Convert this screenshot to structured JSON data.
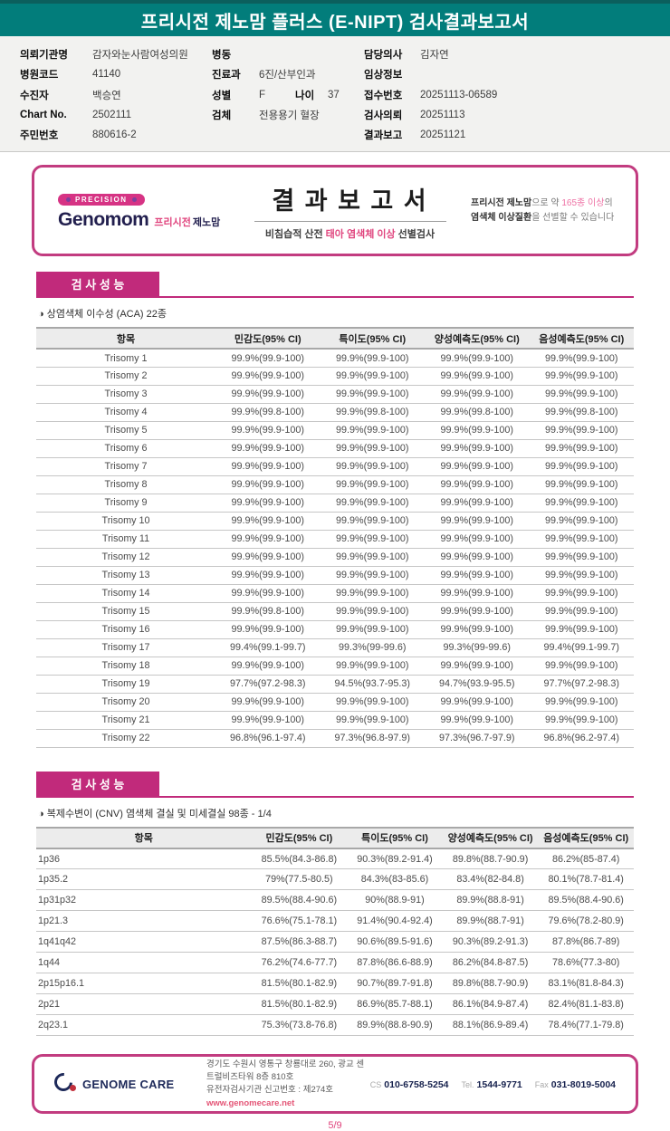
{
  "colors": {
    "teal": "#027d7b",
    "magenta": "#c12a7b",
    "pink_accent": "#e0457e"
  },
  "header": {
    "title": "프리시전 제노맘 플러스 (E-NIPT) 검사결과보고서"
  },
  "patient": {
    "col1": [
      {
        "label": "의뢰기관명",
        "value": "감자와눈사람여성의원"
      },
      {
        "label": "병원코드",
        "value": "41140"
      },
      {
        "label": "수진자",
        "value": "백승연"
      },
      {
        "label": "Chart No.",
        "value": "2502111"
      },
      {
        "label": "주민번호",
        "value": "880616-2"
      }
    ],
    "col2": [
      {
        "label": "병동",
        "value": ""
      },
      {
        "label": "진료과",
        "value": "6진/산부인과"
      },
      {
        "label": "성별",
        "value": "F",
        "label2": "나이",
        "value2": "37"
      },
      {
        "label": "검체",
        "value": "전용용기 혈장"
      }
    ],
    "col3": [
      {
        "label": "담당의사",
        "value": "김자연"
      },
      {
        "label": "임상정보",
        "value": ""
      },
      {
        "label": "접수번호",
        "value": "20251113-06589"
      },
      {
        "label": "검사의뢰",
        "value": "20251113"
      },
      {
        "label": "결과보고",
        "value": "20251121"
      }
    ]
  },
  "banner": {
    "badge": "PRECISION",
    "brand": "Genomom",
    "brand_kr_pink": "프리시전",
    "brand_kr_dark": "제노맘",
    "title": "결 과 보 고 서",
    "sub_pre": "비침습적 산전 ",
    "sub_pink": "태아 염색체 이상",
    "sub_post": " 선별검사",
    "right_b1": "프리시전 제노맘",
    "right_t1": "으로 약 ",
    "right_p1": "165종 이상",
    "right_t2": "의 ",
    "right_b2": "염색체 이상질환",
    "right_t3": "을 선별할 수 있습니다"
  },
  "section_aca": {
    "heading": "검 사 성 능",
    "subtitle": "◑ 상염색체 이수성 (ACA) 22종"
  },
  "section_cnv": {
    "heading": "검 사 성 능",
    "subtitle": "◑ 복제수변이 (CNV) 염색체 결실 및 미세결실 98종 - 1/4"
  },
  "tables": {
    "aca": {
      "columns": [
        "항목",
        "민감도(95% CI)",
        "특이도(95% CI)",
        "양성예측도(95% CI)",
        "음성예측도(95% CI)"
      ],
      "rows": [
        [
          "Trisomy 1",
          "99.9%(99.9-100)",
          "99.9%(99.9-100)",
          "99.9%(99.9-100)",
          "99.9%(99.9-100)"
        ],
        [
          "Trisomy 2",
          "99.9%(99.9-100)",
          "99.9%(99.9-100)",
          "99.9%(99.9-100)",
          "99.9%(99.9-100)"
        ],
        [
          "Trisomy 3",
          "99.9%(99.9-100)",
          "99.9%(99.9-100)",
          "99.9%(99.9-100)",
          "99.9%(99.9-100)"
        ],
        [
          "Trisomy 4",
          "99.9%(99.8-100)",
          "99.9%(99.8-100)",
          "99.9%(99.8-100)",
          "99.9%(99.8-100)"
        ],
        [
          "Trisomy 5",
          "99.9%(99.9-100)",
          "99.9%(99.9-100)",
          "99.9%(99.9-100)",
          "99.9%(99.9-100)"
        ],
        [
          "Trisomy 6",
          "99.9%(99.9-100)",
          "99.9%(99.9-100)",
          "99.9%(99.9-100)",
          "99.9%(99.9-100)"
        ],
        [
          "Trisomy 7",
          "99.9%(99.9-100)",
          "99.9%(99.9-100)",
          "99.9%(99.9-100)",
          "99.9%(99.9-100)"
        ],
        [
          "Trisomy 8",
          "99.9%(99.9-100)",
          "99.9%(99.9-100)",
          "99.9%(99.9-100)",
          "99.9%(99.9-100)"
        ],
        [
          "Trisomy 9",
          "99.9%(99.9-100)",
          "99.9%(99.9-100)",
          "99.9%(99.9-100)",
          "99.9%(99.9-100)"
        ],
        [
          "Trisomy 10",
          "99.9%(99.9-100)",
          "99.9%(99.9-100)",
          "99.9%(99.9-100)",
          "99.9%(99.9-100)"
        ],
        [
          "Trisomy 11",
          "99.9%(99.9-100)",
          "99.9%(99.9-100)",
          "99.9%(99.9-100)",
          "99.9%(99.9-100)"
        ],
        [
          "Trisomy 12",
          "99.9%(99.9-100)",
          "99.9%(99.9-100)",
          "99.9%(99.9-100)",
          "99.9%(99.9-100)"
        ],
        [
          "Trisomy 13",
          "99.9%(99.9-100)",
          "99.9%(99.9-100)",
          "99.9%(99.9-100)",
          "99.9%(99.9-100)"
        ],
        [
          "Trisomy 14",
          "99.9%(99.9-100)",
          "99.9%(99.9-100)",
          "99.9%(99.9-100)",
          "99.9%(99.9-100)"
        ],
        [
          "Trisomy 15",
          "99.9%(99.8-100)",
          "99.9%(99.9-100)",
          "99.9%(99.9-100)",
          "99.9%(99.9-100)"
        ],
        [
          "Trisomy 16",
          "99.9%(99.9-100)",
          "99.9%(99.9-100)",
          "99.9%(99.9-100)",
          "99.9%(99.9-100)"
        ],
        [
          "Trisomy 17",
          "99.4%(99.1-99.7)",
          "99.3%(99-99.6)",
          "99.3%(99-99.6)",
          "99.4%(99.1-99.7)"
        ],
        [
          "Trisomy 18",
          "99.9%(99.9-100)",
          "99.9%(99.9-100)",
          "99.9%(99.9-100)",
          "99.9%(99.9-100)"
        ],
        [
          "Trisomy 19",
          "97.7%(97.2-98.3)",
          "94.5%(93.7-95.3)",
          "94.7%(93.9-95.5)",
          "97.7%(97.2-98.3)"
        ],
        [
          "Trisomy 20",
          "99.9%(99.9-100)",
          "99.9%(99.9-100)",
          "99.9%(99.9-100)",
          "99.9%(99.9-100)"
        ],
        [
          "Trisomy 21",
          "99.9%(99.9-100)",
          "99.9%(99.9-100)",
          "99.9%(99.9-100)",
          "99.9%(99.9-100)"
        ],
        [
          "Trisomy 22",
          "96.8%(96.1-97.4)",
          "97.3%(96.8-97.9)",
          "97.3%(96.7-97.9)",
          "96.8%(96.2-97.4)"
        ]
      ]
    },
    "cnv": {
      "columns": [
        "항목",
        "민감도(95% CI)",
        "특이도(95% CI)",
        "양성예측도(95% CI)",
        "음성예측도(95% CI)"
      ],
      "rows": [
        [
          "1p36",
          "85.5%(84.3-86.8)",
          "90.3%(89.2-91.4)",
          "89.8%(88.7-90.9)",
          "86.2%(85-87.4)"
        ],
        [
          "1p35.2",
          "79%(77.5-80.5)",
          "84.3%(83-85.6)",
          "83.4%(82-84.8)",
          "80.1%(78.7-81.4)"
        ],
        [
          "1p31p32",
          "89.5%(88.4-90.6)",
          "90%(88.9-91)",
          "89.9%(88.8-91)",
          "89.5%(88.4-90.6)"
        ],
        [
          "1p21.3",
          "76.6%(75.1-78.1)",
          "91.4%(90.4-92.4)",
          "89.9%(88.7-91)",
          "79.6%(78.2-80.9)"
        ],
        [
          "1q41q42",
          "87.5%(86.3-88.7)",
          "90.6%(89.5-91.6)",
          "90.3%(89.2-91.3)",
          "87.8%(86.7-89)"
        ],
        [
          "1q44",
          "76.2%(74.6-77.7)",
          "87.8%(86.6-88.9)",
          "86.2%(84.8-87.5)",
          "78.6%(77.3-80)"
        ],
        [
          "2p15p16.1",
          "81.5%(80.1-82.9)",
          "90.7%(89.7-91.8)",
          "89.8%(88.7-90.9)",
          "83.1%(81.8-84.3)"
        ],
        [
          "2p21",
          "81.5%(80.1-82.9)",
          "86.9%(85.7-88.1)",
          "86.1%(84.9-87.4)",
          "82.4%(81.1-83.8)"
        ],
        [
          "2q23.1",
          "75.3%(73.8-76.8)",
          "89.9%(88.8-90.9)",
          "88.1%(86.9-89.4)",
          "78.4%(77.1-79.8)"
        ]
      ]
    }
  },
  "footer": {
    "brand": "GENOME CARE",
    "address": "경기도 수원시 영통구 창룡대로 260, 광교 센트럴비즈타워 8층 810호",
    "license": "유전자검사기관 신고번호 : 제274호",
    "website": "www.genomecare.net",
    "cs_label": "CS",
    "cs": "010-6758-5254",
    "tel_label": "Tel.",
    "tel": "1544-9771",
    "fax_label": "Fax",
    "fax": "031-8019-5004",
    "page": "5/9"
  }
}
